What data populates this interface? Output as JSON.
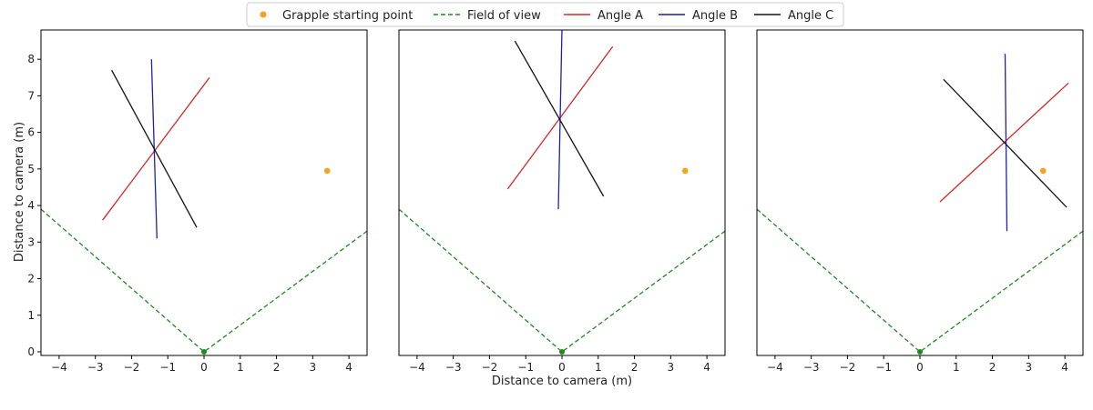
{
  "figure": {
    "legend": {
      "placement": "top-center",
      "entries": [
        {
          "label": "Grapple starting point",
          "marker": "dot",
          "color": "#f5a31a"
        },
        {
          "label": "Field of view",
          "marker": "dashed-line",
          "color": "#1f8a1f"
        },
        {
          "label": "Angle A",
          "marker": "line",
          "color": "#d62728"
        },
        {
          "label": "Angle B",
          "marker": "line",
          "color": "#1f1fb4"
        },
        {
          "label": "Angle C",
          "marker": "line",
          "color": "#111111"
        }
      ]
    },
    "xlabel": "Distance to camera (m)",
    "ylabel": "Distance to camera (m)",
    "colors": {
      "grapple": "#f5a31a",
      "fov": "#1f8a1f",
      "angle_a": "#d62728",
      "angle_b": "#1f1fb4",
      "angle_c": "#111111"
    }
  },
  "chart_data": [
    {
      "type": "line",
      "panel": "left",
      "xlim": [
        -4.5,
        4.5
      ],
      "ylim": [
        -0.1,
        8.8
      ],
      "xticks": [
        -4,
        -3,
        -2,
        -1,
        0,
        1,
        2,
        3,
        4
      ],
      "yticks": [
        0,
        1,
        2,
        3,
        4,
        5,
        6,
        7,
        8
      ],
      "xlabel": "",
      "ylabel": "Distance to camera (m)",
      "grid": false,
      "grapple": {
        "x": 3.4,
        "y": 4.95
      },
      "camera": {
        "x": 0,
        "y": 0
      },
      "series": [
        {
          "name": "Field of view",
          "style": "dashed",
          "x": [
            -4.5,
            0,
            4.5
          ],
          "y": [
            3.9,
            0,
            3.3
          ]
        },
        {
          "name": "Angle A",
          "x": [
            -2.8,
            0.15
          ],
          "y": [
            3.6,
            7.5
          ]
        },
        {
          "name": "Angle B",
          "x": [
            -1.45,
            -1.3
          ],
          "y": [
            8.0,
            3.1
          ]
        },
        {
          "name": "Angle C",
          "x": [
            -2.55,
            -0.2
          ],
          "y": [
            7.7,
            3.4
          ]
        }
      ]
    },
    {
      "type": "line",
      "panel": "middle",
      "xlim": [
        -4.5,
        4.5
      ],
      "ylim": [
        -0.1,
        8.8
      ],
      "xticks": [
        -4,
        -3,
        -2,
        -1,
        0,
        1,
        2,
        3,
        4
      ],
      "yticks": [],
      "xlabel": "Distance to camera (m)",
      "ylabel": "",
      "grid": false,
      "grapple": {
        "x": 3.4,
        "y": 4.95
      },
      "camera": {
        "x": 0,
        "y": 0
      },
      "series": [
        {
          "name": "Field of view",
          "style": "dashed",
          "x": [
            -4.5,
            0,
            4.5
          ],
          "y": [
            3.9,
            0,
            3.3
          ]
        },
        {
          "name": "Angle A",
          "x": [
            -1.5,
            1.4
          ],
          "y": [
            4.45,
            8.35
          ]
        },
        {
          "name": "Angle B",
          "x": [
            -0.1,
            0.0
          ],
          "y": [
            3.9,
            8.85
          ]
        },
        {
          "name": "Angle C",
          "x": [
            -1.3,
            1.15
          ],
          "y": [
            8.5,
            4.25
          ]
        }
      ]
    },
    {
      "type": "line",
      "panel": "right",
      "xlim": [
        -4.5,
        4.5
      ],
      "ylim": [
        -0.1,
        8.8
      ],
      "xticks": [
        -4,
        -3,
        -2,
        -1,
        0,
        1,
        2,
        3,
        4
      ],
      "yticks": [],
      "xlabel": "",
      "ylabel": "",
      "grid": false,
      "grapple": {
        "x": 3.4,
        "y": 4.95
      },
      "camera": {
        "x": 0,
        "y": 0
      },
      "series": [
        {
          "name": "Field of view",
          "style": "dashed",
          "x": [
            -4.5,
            0,
            4.5
          ],
          "y": [
            3.9,
            0,
            3.3
          ]
        },
        {
          "name": "Angle A",
          "x": [
            0.55,
            4.1
          ],
          "y": [
            4.1,
            7.35
          ]
        },
        {
          "name": "Angle B",
          "x": [
            2.35,
            2.4
          ],
          "y": [
            8.15,
            3.3
          ]
        },
        {
          "name": "Angle C",
          "x": [
            0.65,
            4.05
          ],
          "y": [
            7.45,
            3.95
          ]
        }
      ]
    }
  ]
}
